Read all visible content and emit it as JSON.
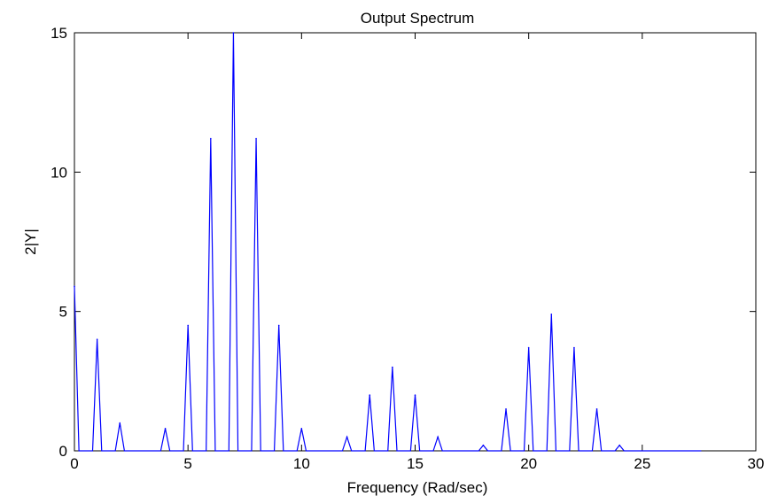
{
  "chart_data": {
    "type": "line",
    "title": "Output Spectrum",
    "xlabel": "Frequency (Rad/sec)",
    "ylabel": "2|Y|",
    "xlim": [
      0,
      30
    ],
    "ylim": [
      0,
      15
    ],
    "xticks": [
      0,
      5,
      10,
      15,
      20,
      25,
      30
    ],
    "yticks": [
      0,
      5,
      10,
      15
    ],
    "grid": false,
    "series_color": "#0000ff",
    "x_end": 27.6,
    "peak_halfwidth": 0.2,
    "series": [
      {
        "values": [
          {
            "x": 0,
            "y": 5.9
          },
          {
            "x": 1,
            "y": 4.0
          },
          {
            "x": 2,
            "y": 1.0
          },
          {
            "x": 4,
            "y": 0.8
          },
          {
            "x": 5,
            "y": 4.5
          },
          {
            "x": 6,
            "y": 11.2
          },
          {
            "x": 7,
            "y": 15.0
          },
          {
            "x": 8,
            "y": 11.2
          },
          {
            "x": 9,
            "y": 4.5
          },
          {
            "x": 10,
            "y": 0.8
          },
          {
            "x": 12,
            "y": 0.5
          },
          {
            "x": 13,
            "y": 2.0
          },
          {
            "x": 14,
            "y": 3.0
          },
          {
            "x": 15,
            "y": 2.0
          },
          {
            "x": 16,
            "y": 0.5
          },
          {
            "x": 18,
            "y": 0.2
          },
          {
            "x": 19,
            "y": 1.5
          },
          {
            "x": 20,
            "y": 3.7
          },
          {
            "x": 21,
            "y": 4.9
          },
          {
            "x": 22,
            "y": 3.7
          },
          {
            "x": 23,
            "y": 1.5
          },
          {
            "x": 24,
            "y": 0.2
          }
        ]
      }
    ]
  }
}
